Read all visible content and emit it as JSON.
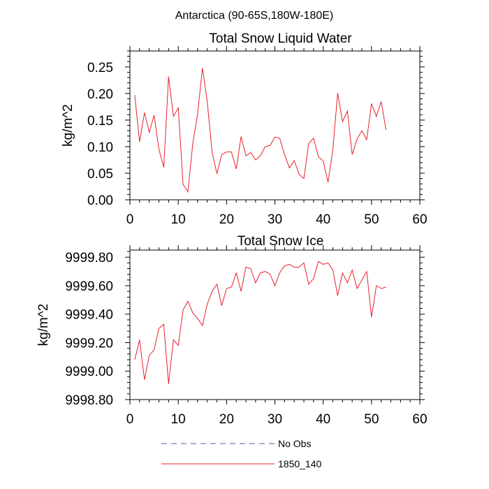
{
  "suptitle": "Antarctica (90-65S,180W-180E)",
  "legend": {
    "items": [
      {
        "label": "No Obs",
        "color": "#5a5a9a",
        "dash": "8,6"
      },
      {
        "label": "1850_140",
        "color": "#e8202a",
        "dash": ""
      }
    ]
  },
  "chart_data": [
    {
      "type": "line",
      "title": "Total Snow Liquid Water",
      "ylabel": "kg/m^2",
      "xlabel": "",
      "xlim": [
        0,
        60
      ],
      "ylim": [
        0,
        0.28
      ],
      "xticks": [
        0,
        10,
        20,
        30,
        40,
        50,
        60
      ],
      "yticks": [
        0,
        0.05,
        0.1,
        0.15,
        0.2,
        0.25
      ],
      "ytick_labels": [
        "0.00",
        "0.05",
        "0.10",
        "0.15",
        "0.20",
        "0.25"
      ],
      "series": [
        {
          "name": "1850_140",
          "color": "#e8202a",
          "x": [
            1,
            2,
            3,
            4,
            5,
            6,
            7,
            8,
            9,
            10,
            11,
            12,
            13,
            14,
            15,
            16,
            17,
            18,
            19,
            20,
            21,
            22,
            23,
            24,
            25,
            26,
            27,
            28,
            29,
            30,
            31,
            32,
            33,
            34,
            35,
            36,
            37,
            38,
            39,
            40,
            41,
            42,
            43,
            44,
            45,
            46,
            47,
            48,
            49,
            50,
            51,
            52,
            53
          ],
          "y": [
            0.197,
            0.109,
            0.164,
            0.127,
            0.159,
            0.095,
            0.061,
            0.232,
            0.157,
            0.173,
            0.029,
            0.015,
            0.105,
            0.161,
            0.248,
            0.184,
            0.09,
            0.049,
            0.085,
            0.09,
            0.09,
            0.058,
            0.119,
            0.083,
            0.089,
            0.075,
            0.083,
            0.1,
            0.102,
            0.118,
            0.116,
            0.085,
            0.06,
            0.074,
            0.048,
            0.04,
            0.106,
            0.116,
            0.081,
            0.073,
            0.033,
            0.095,
            0.201,
            0.147,
            0.167,
            0.085,
            0.114,
            0.13,
            0.113,
            0.181,
            0.157,
            0.185,
            0.131
          ]
        }
      ]
    },
    {
      "type": "line",
      "title": "Total Snow Ice",
      "ylabel": "kg/m^2",
      "xlabel": "",
      "xlim": [
        0,
        60
      ],
      "ylim": [
        9998.8,
        9999.85
      ],
      "xticks": [
        0,
        10,
        20,
        30,
        40,
        50,
        60
      ],
      "yticks": [
        9998.8,
        9999.0,
        9999.2,
        9999.4,
        9999.6,
        9999.8
      ],
      "ytick_labels": [
        "9998.80",
        "9999.00",
        "9999.20",
        "9999.40",
        "9999.60",
        "9999.80"
      ],
      "series": [
        {
          "name": "1850_140",
          "color": "#e8202a",
          "x": [
            1,
            2,
            3,
            4,
            5,
            6,
            7,
            8,
            9,
            10,
            11,
            12,
            13,
            14,
            15,
            16,
            17,
            18,
            19,
            20,
            21,
            22,
            23,
            24,
            25,
            26,
            27,
            28,
            29,
            30,
            31,
            32,
            33,
            34,
            35,
            36,
            37,
            38,
            39,
            40,
            41,
            42,
            43,
            44,
            45,
            46,
            47,
            48,
            49,
            50,
            51,
            52,
            53
          ],
          "y": [
            9999.08,
            9999.22,
            9998.94,
            9999.11,
            9999.15,
            9999.3,
            9999.33,
            9998.91,
            9999.22,
            9999.18,
            9999.43,
            9999.49,
            9999.41,
            9999.37,
            9999.32,
            9999.47,
            9999.56,
            9999.61,
            9999.46,
            9999.58,
            9999.59,
            9999.69,
            9999.56,
            9999.73,
            9999.72,
            9999.62,
            9999.69,
            9999.7,
            9999.68,
            9999.6,
            9999.69,
            9999.74,
            9999.75,
            9999.73,
            9999.73,
            9999.76,
            9999.61,
            9999.65,
            9999.77,
            9999.75,
            9999.76,
            9999.71,
            9999.53,
            9999.69,
            9999.62,
            9999.71,
            9999.58,
            9999.64,
            9999.7,
            9999.38,
            9999.6,
            9999.58,
            9999.59
          ]
        }
      ]
    }
  ]
}
